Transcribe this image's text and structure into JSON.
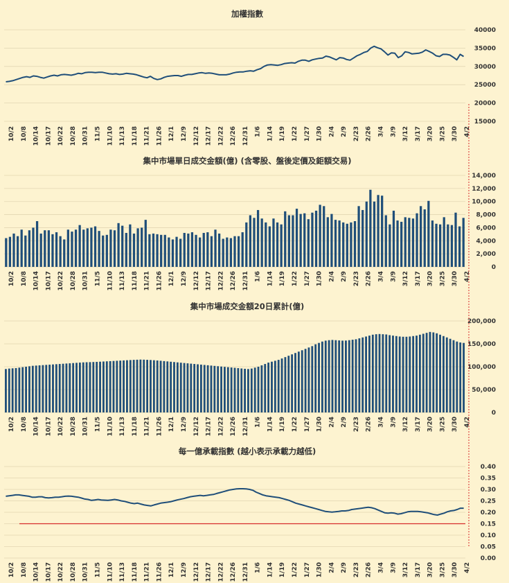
{
  "chart_data": [
    {
      "type": "line",
      "title": "加權指數",
      "color": "#1f4e79",
      "ylim": [
        15000,
        40000
      ],
      "yticks": [
        15000,
        20000,
        25000,
        30000,
        35000,
        40000
      ],
      "ytick_labels": [
        "15000",
        "20000",
        "25000",
        "30000",
        "35000",
        "40000"
      ],
      "x_tick_labels": [
        "10/2",
        "10/8",
        "10/14",
        "10/17",
        "10/22",
        "10/28",
        "10/31",
        "11/5",
        "11/10",
        "11/13",
        "11/18",
        "11/21",
        "11/26",
        "12/1",
        "12/9",
        "12/12",
        "12/17",
        "12/22",
        "12/26",
        "12/31",
        "1/6",
        "1/14",
        "1/19",
        "1/22",
        "1/27",
        "1/30",
        "2/4",
        "2/9",
        "2/23",
        "2/26",
        "3/4",
        "3/9",
        "3/12",
        "3/17",
        "3/20",
        "3/25",
        "3/30",
        "4/2"
      ],
      "values": [
        25800,
        25900,
        26100,
        26400,
        26700,
        27000,
        27200,
        27000,
        27400,
        27300,
        27000,
        26800,
        27100,
        27400,
        27600,
        27400,
        27700,
        27800,
        27700,
        27600,
        27800,
        28100,
        28000,
        28300,
        28400,
        28400,
        28300,
        28400,
        28400,
        28200,
        28000,
        27900,
        28000,
        27800,
        27900,
        28100,
        28000,
        27900,
        27700,
        27400,
        27100,
        26900,
        27300,
        26700,
        26400,
        26600,
        27000,
        27300,
        27400,
        27500,
        27500,
        27300,
        27600,
        27800,
        27800,
        28000,
        28200,
        28300,
        28100,
        28200,
        28100,
        27900,
        27700,
        27700,
        27700,
        27900,
        28200,
        28400,
        28500,
        28500,
        28700,
        28800,
        28700,
        29100,
        29400,
        30000,
        30400,
        30500,
        30400,
        30300,
        30500,
        30800,
        30900,
        31000,
        30900,
        31400,
        31700,
        31700,
        31400,
        31800,
        32000,
        32200,
        32300,
        32800,
        32600,
        32200,
        31800,
        32400,
        32300,
        31900,
        31700,
        32300,
        32900,
        33300,
        33800,
        34100,
        35000,
        35500,
        35100,
        34800,
        34000,
        33100,
        33700,
        33600,
        32400,
        32900,
        34000,
        33800,
        33400,
        33500,
        33600,
        33900,
        34500,
        34100,
        33600,
        32900,
        32700,
        33300,
        33300,
        33100,
        32500,
        31800,
        33300,
        32700
      ]
    },
    {
      "type": "bar",
      "title": "集中市場單日成交金額(億) (含零股、盤後定價及鉅額交易)",
      "color": "#1f4e79",
      "ylim": [
        0,
        14000
      ],
      "yticks": [
        0,
        2000,
        4000,
        6000,
        8000,
        10000,
        12000,
        14000
      ],
      "ytick_labels": [
        "0",
        "2,000",
        "4,000",
        "6,000",
        "8,000",
        "10,000",
        "12,000",
        "14,000"
      ],
      "x_tick_labels": [
        "10/2",
        "10/8",
        "10/14",
        "10/17",
        "10/22",
        "10/28",
        "10/31",
        "11/5",
        "11/10",
        "11/13",
        "11/18",
        "11/21",
        "11/26",
        "12/1",
        "12/9",
        "12/12",
        "12/17",
        "12/22",
        "12/26",
        "12/31",
        "1/6",
        "1/14",
        "1/19",
        "1/22",
        "1/27",
        "1/30",
        "2/4",
        "2/9",
        "2/23",
        "2/26",
        "3/4",
        "3/9",
        "3/12",
        "3/17",
        "3/20",
        "3/25",
        "3/30",
        "4/2"
      ],
      "values": [
        4400,
        4600,
        5100,
        4700,
        5700,
        4800,
        5600,
        6000,
        7000,
        5100,
        5600,
        5600,
        5000,
        5300,
        4700,
        4200,
        5700,
        5400,
        5700,
        6400,
        5700,
        5900,
        6000,
        6200,
        5500,
        4800,
        4900,
        5700,
        5600,
        6700,
        6300,
        5200,
        6500,
        5100,
        5900,
        6000,
        7200,
        5000,
        5100,
        5000,
        4900,
        4900,
        4500,
        4200,
        4600,
        4300,
        5200,
        5100,
        5300,
        4900,
        4500,
        5200,
        5300,
        4700,
        5700,
        5100,
        4300,
        4500,
        4400,
        4700,
        4700,
        5300,
        6800,
        7900,
        7500,
        8700,
        7400,
        6800,
        6200,
        7400,
        6800,
        6500,
        8500,
        7900,
        7900,
        8900,
        8100,
        8200,
        7300,
        8300,
        8600,
        9500,
        9300,
        7600,
        8100,
        7200,
        7100,
        6800,
        6600,
        6800,
        7000,
        9300,
        8700,
        10000,
        11800,
        10000,
        11000,
        10900,
        7900,
        6500,
        8600,
        7100,
        6900,
        7600,
        7500,
        7400,
        8200,
        9300,
        8800,
        10100,
        7100,
        6600,
        6500,
        7600,
        6500,
        6400,
        8300,
        6200,
        7500
      ]
    },
    {
      "type": "bar",
      "title": "集中市場成交金額20日累計(億)",
      "color": "#1f4e79",
      "ylim": [
        0,
        200000
      ],
      "yticks": [
        0,
        50000,
        100000,
        150000,
        200000
      ],
      "ytick_labels": [
        "0",
        "50,000",
        "100,000",
        "150,000",
        "200,000"
      ],
      "x_tick_labels": [
        "10/2",
        "10/8",
        "10/14",
        "10/17",
        "10/22",
        "10/28",
        "10/31",
        "11/5",
        "11/10",
        "11/13",
        "11/18",
        "11/21",
        "11/26",
        "12/1",
        "12/9",
        "12/12",
        "12/17",
        "12/22",
        "12/26",
        "12/31",
        "1/6",
        "1/14",
        "1/19",
        "1/22",
        "1/27",
        "1/30",
        "2/4",
        "2/9",
        "2/23",
        "2/26",
        "3/4",
        "3/9",
        "3/12",
        "3/17",
        "3/20",
        "3/25",
        "3/30",
        "4/2"
      ],
      "values": [
        95000,
        96000,
        96500,
        97000,
        98000,
        99000,
        100000,
        101000,
        102000,
        102500,
        103000,
        103500,
        104000,
        104500,
        105000,
        105500,
        106000,
        106500,
        107000,
        107500,
        108000,
        108500,
        109000,
        109500,
        109800,
        110000,
        110300,
        110600,
        111000,
        111400,
        111800,
        112200,
        112600,
        113000,
        113400,
        113800,
        114200,
        114600,
        115000,
        115300,
        115600,
        115400,
        115100,
        114700,
        114200,
        113600,
        113000,
        112300,
        111600,
        110900,
        110200,
        109500,
        108800,
        108100,
        107400,
        106700,
        106000,
        105300,
        104600,
        103900,
        103200,
        102500,
        101800,
        101100,
        100400,
        99700,
        99000,
        98300,
        97600,
        96900,
        96200,
        95500,
        95000,
        96000,
        98000,
        100000,
        103000,
        106000,
        109000,
        111000,
        113000,
        115000,
        118000,
        121000,
        124000,
        127000,
        130000,
        133000,
        136000,
        139000,
        142000,
        145000,
        149000,
        152000,
        155000,
        157000,
        158000,
        158500,
        158000,
        157500,
        157000,
        157200,
        158000,
        159000,
        160000,
        162000,
        164000,
        166000,
        168000,
        170000,
        171000,
        171500,
        171000,
        170500,
        169000,
        168000,
        167000,
        166000,
        165500,
        165500,
        166000,
        167000,
        168000,
        170000,
        172000,
        174000,
        176000,
        175000,
        173000,
        170000,
        167000,
        164000,
        161000,
        158000,
        155000,
        153000,
        152000
      ]
    },
    {
      "type": "line",
      "title": "每一億承載指數 (越小表示承載力越低)",
      "color": "#1f4e79",
      "reference_line": {
        "value": 0.15,
        "color": "#d62a2a"
      },
      "ylim": [
        0,
        0.4
      ],
      "yticks": [
        0,
        0.05,
        0.1,
        0.15,
        0.2,
        0.25,
        0.3,
        0.35,
        0.4
      ],
      "ytick_labels": [
        "0.00",
        "0.05",
        "0.10",
        "0.15",
        "0.20",
        "0.25",
        "0.30",
        "0.35",
        "0.40"
      ],
      "x_tick_labels": [
        "10/2",
        "10/8",
        "10/14",
        "10/17",
        "10/22",
        "10/28",
        "10/31",
        "11/5",
        "11/10",
        "11/13",
        "11/18",
        "11/21",
        "11/26",
        "12/1",
        "12/9",
        "12/12",
        "12/17",
        "12/22",
        "12/26",
        "12/31",
        "1/6",
        "1/14",
        "1/19",
        "1/22",
        "1/27",
        "1/30",
        "2/4",
        "2/9",
        "2/23",
        "2/26",
        "3/4",
        "3/9",
        "3/12",
        "3/17",
        "3/20",
        "3/25",
        "3/30",
        "4/2"
      ],
      "values": [
        0.27,
        0.272,
        0.274,
        0.276,
        0.276,
        0.274,
        0.272,
        0.27,
        0.266,
        0.266,
        0.268,
        0.268,
        0.264,
        0.263,
        0.264,
        0.266,
        0.266,
        0.268,
        0.27,
        0.271,
        0.27,
        0.268,
        0.266,
        0.262,
        0.258,
        0.256,
        0.252,
        0.254,
        0.256,
        0.254,
        0.253,
        0.252,
        0.254,
        0.256,
        0.254,
        0.25,
        0.248,
        0.244,
        0.24,
        0.238,
        0.24,
        0.236,
        0.232,
        0.23,
        0.228,
        0.232,
        0.236,
        0.24,
        0.242,
        0.244,
        0.246,
        0.25,
        0.254,
        0.257,
        0.26,
        0.264,
        0.268,
        0.27,
        0.272,
        0.274,
        0.272,
        0.274,
        0.276,
        0.278,
        0.282,
        0.286,
        0.29,
        0.294,
        0.298,
        0.3,
        0.302,
        0.303,
        0.303,
        0.302,
        0.3,
        0.296,
        0.288,
        0.282,
        0.276,
        0.272,
        0.27,
        0.268,
        0.266,
        0.264,
        0.26,
        0.256,
        0.252,
        0.246,
        0.24,
        0.236,
        0.232,
        0.228,
        0.224,
        0.22,
        0.216,
        0.212,
        0.208,
        0.204,
        0.202,
        0.201,
        0.202,
        0.204,
        0.206,
        0.206,
        0.208,
        0.212,
        0.214,
        0.216,
        0.218,
        0.22,
        0.222,
        0.22,
        0.216,
        0.21,
        0.204,
        0.198,
        0.196,
        0.198,
        0.196,
        0.192,
        0.194,
        0.198,
        0.202,
        0.204,
        0.204,
        0.204,
        0.202,
        0.2,
        0.198,
        0.194,
        0.19,
        0.188,
        0.192,
        0.196,
        0.202,
        0.206,
        0.208,
        0.212,
        0.218,
        0.218
      ]
    }
  ]
}
